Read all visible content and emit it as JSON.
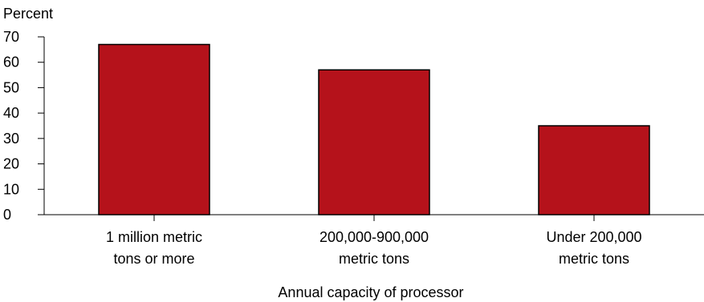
{
  "chart_data": {
    "type": "bar",
    "ylabel": "Percent",
    "xlabel": "Annual capacity of processor",
    "categories": [
      [
        "1 million metric",
        "tons or more"
      ],
      [
        "200,000-900,000",
        "metric tons"
      ],
      [
        "Under 200,000",
        "metric tons"
      ]
    ],
    "values": [
      67,
      57,
      35
    ],
    "ylim": [
      0,
      70
    ],
    "yticks": [
      "0",
      "10",
      "20",
      "30",
      "40",
      "50",
      "60",
      "70"
    ],
    "bar_color": "#b5121b",
    "grid": false
  }
}
